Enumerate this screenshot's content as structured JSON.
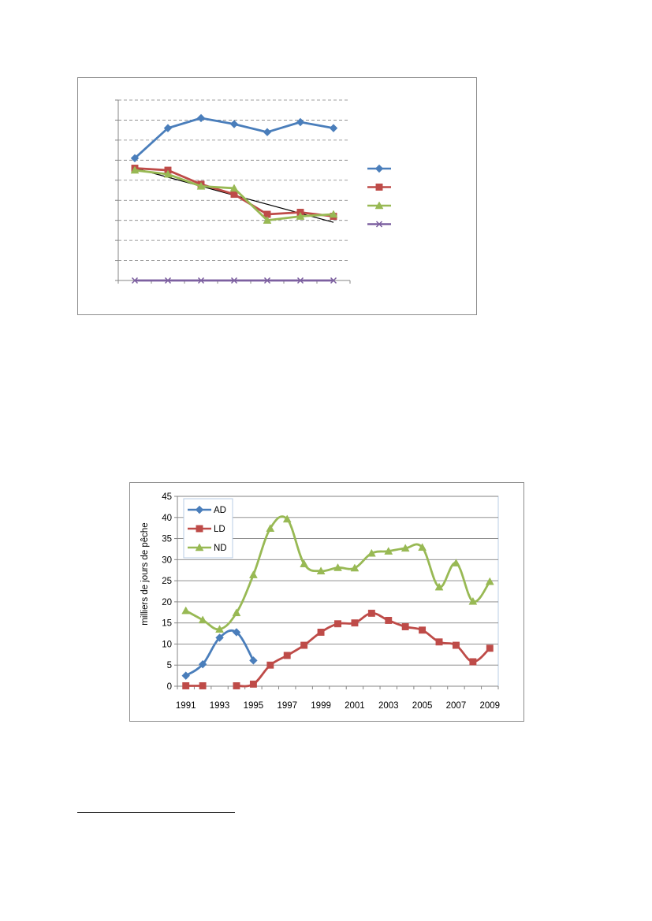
{
  "colors": {
    "blue": "#4a7ebb",
    "red": "#be4b48",
    "green": "#98b954",
    "purple": "#7d60a0",
    "trend": "#000000",
    "grid": "#808080"
  },
  "chart_data": [
    {
      "type": "line",
      "categories": [
        "",
        "",
        "",
        "",
        "",
        "",
        ""
      ],
      "ylim": [
        0,
        9
      ],
      "grid": "dashed horizontal",
      "legend_position": "right",
      "series": [
        {
          "values": [
            6.1,
            7.6,
            8.1,
            7.8,
            7.4,
            7.9,
            7.6
          ],
          "color": "#4a7ebb",
          "marker": "diamond"
        },
        {
          "values": [
            5.6,
            5.5,
            4.8,
            4.3,
            3.3,
            3.4,
            3.2
          ],
          "color": "#be4b48",
          "marker": "square"
        },
        {
          "values": [
            5.5,
            5.3,
            4.7,
            4.6,
            3.0,
            3.2,
            3.3
          ],
          "color": "#98b954",
          "marker": "triangle"
        },
        {
          "values": [
            0,
            0,
            0,
            0,
            0,
            0,
            0
          ],
          "color": "#7d60a0",
          "marker": "x"
        }
      ],
      "trendline": {
        "x": [
          0,
          6
        ],
        "y": [
          5.6,
          2.9
        ],
        "color": "#000000"
      }
    },
    {
      "type": "line",
      "x": [
        1991,
        1992,
        1993,
        1994,
        1995,
        1996,
        1997,
        1998,
        1999,
        2000,
        2001,
        2002,
        2003,
        2004,
        2005,
        2006,
        2007,
        2008,
        2009
      ],
      "x_tick_labels": [
        "1991",
        "1993",
        "1995",
        "1997",
        "1999",
        "2001",
        "2003",
        "2005",
        "2007",
        "2009"
      ],
      "y_tick_labels": [
        "0",
        "5",
        "10",
        "15",
        "20",
        "25",
        "30",
        "35",
        "40",
        "45"
      ],
      "ylim": [
        0,
        45
      ],
      "ylabel": "milliers de jours de pêche",
      "grid": "horizontal",
      "legend_position": "top-left",
      "series": [
        {
          "name": "AD",
          "color": "#4a7ebb",
          "marker": "diamond",
          "points": [
            [
              1991,
              2.5
            ],
            [
              1992,
              5.2
            ],
            [
              1993,
              11.5
            ],
            [
              1994,
              12.8
            ],
            [
              1995,
              6.1
            ]
          ]
        },
        {
          "name": "LD",
          "color": "#be4b48",
          "marker": "square",
          "points": [
            [
              1991,
              0.1
            ],
            [
              1992,
              0.1
            ],
            [
              1994,
              0.1
            ],
            [
              1995,
              0.5
            ],
            [
              1996,
              5.0
            ],
            [
              1997,
              7.3
            ],
            [
              1998,
              9.7
            ],
            [
              1999,
              12.8
            ],
            [
              2000,
              14.8
            ],
            [
              2001,
              15.0
            ],
            [
              2002,
              17.3
            ],
            [
              2003,
              15.6
            ],
            [
              2004,
              14.1
            ],
            [
              2005,
              13.3
            ],
            [
              2006,
              10.5
            ],
            [
              2007,
              9.7
            ],
            [
              2008,
              5.8
            ],
            [
              2009,
              9.0
            ]
          ]
        },
        {
          "name": "ND",
          "color": "#98b954",
          "marker": "triangle",
          "points": [
            [
              1991,
              17.9
            ],
            [
              1992,
              15.7
            ],
            [
              1993,
              13.5
            ],
            [
              1994,
              17.4
            ],
            [
              1995,
              26.4
            ],
            [
              1996,
              37.4
            ],
            [
              1997,
              39.6
            ],
            [
              1998,
              29.0
            ],
            [
              1999,
              27.3
            ],
            [
              2000,
              28.1
            ],
            [
              2001,
              28.0
            ],
            [
              2002,
              31.5
            ],
            [
              2003,
              32.0
            ],
            [
              2004,
              32.7
            ],
            [
              2005,
              32.9
            ],
            [
              2006,
              23.5
            ],
            [
              2007,
              29.2
            ],
            [
              2008,
              20.1
            ],
            [
              2009,
              24.8
            ]
          ]
        }
      ]
    }
  ]
}
